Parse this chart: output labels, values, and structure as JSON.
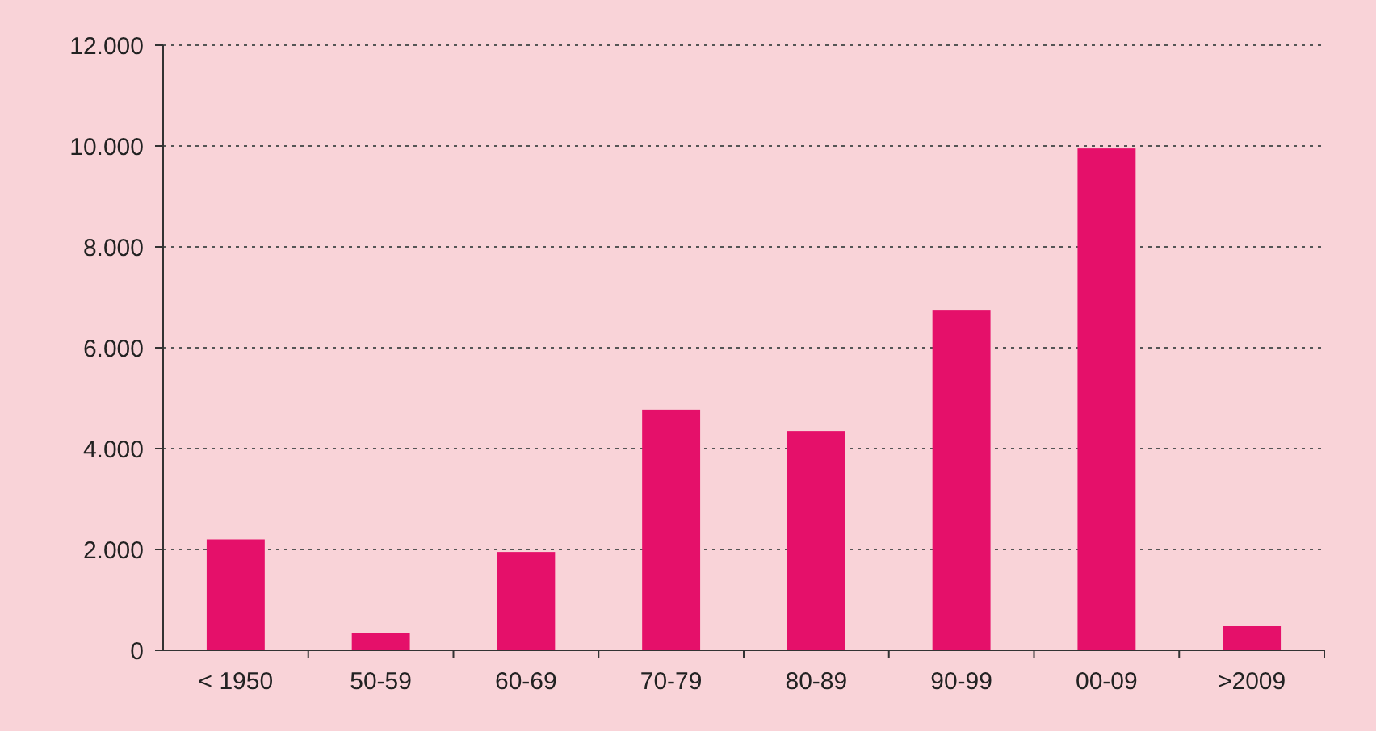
{
  "chart_data": {
    "type": "bar",
    "categories": [
      "< 1950",
      "50-59",
      "60-69",
      "70-79",
      "80-89",
      "90-99",
      "00-09",
      ">2009"
    ],
    "values": [
      2200,
      350,
      1950,
      4770,
      4350,
      6750,
      9950,
      480
    ],
    "color": "#e5106a",
    "ylim": [
      0,
      12000
    ],
    "yticks": [
      {
        "value": 0,
        "label": "0"
      },
      {
        "value": 2000,
        "label": "2.000"
      },
      {
        "value": 4000,
        "label": "4.000"
      },
      {
        "value": 6000,
        "label": "6.000"
      },
      {
        "value": 8000,
        "label": "8.000"
      },
      {
        "value": 10000,
        "label": "10.000"
      },
      {
        "value": 12000,
        "label": "12.000"
      }
    ],
    "grid": "y"
  }
}
